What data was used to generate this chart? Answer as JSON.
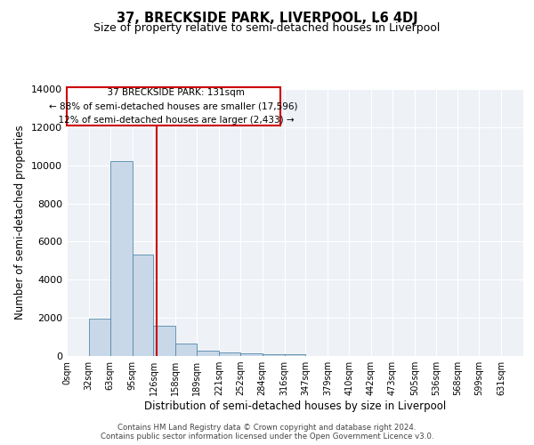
{
  "title": "37, BRECKSIDE PARK, LIVERPOOL, L6 4DJ",
  "subtitle": "Size of property relative to semi-detached houses in Liverpool",
  "xlabel": "Distribution of semi-detached houses by size in Liverpool",
  "ylabel": "Number of semi-detached properties",
  "bin_labels": [
    "0sqm",
    "32sqm",
    "63sqm",
    "95sqm",
    "126sqm",
    "158sqm",
    "189sqm",
    "221sqm",
    "252sqm",
    "284sqm",
    "316sqm",
    "347sqm",
    "379sqm",
    "410sqm",
    "442sqm",
    "473sqm",
    "505sqm",
    "536sqm",
    "568sqm",
    "599sqm",
    "631sqm"
  ],
  "bar_heights": [
    0,
    1950,
    10200,
    5300,
    1600,
    650,
    300,
    175,
    130,
    100,
    100,
    0,
    0,
    0,
    0,
    0,
    0,
    0,
    0,
    0,
    0
  ],
  "bar_color": "#c8d8e8",
  "bar_edge_color": "#5588aa",
  "property_value": 131,
  "property_label": "37 BRECKSIDE PARK: 131sqm",
  "pct_smaller": 88,
  "num_smaller": "17,596",
  "pct_larger": 12,
  "num_larger": "2,433",
  "vline_color": "#cc0000",
  "ylim": [
    0,
    14000
  ],
  "bin_edges": [
    0,
    32,
    63,
    95,
    126,
    158,
    189,
    221,
    252,
    284,
    316,
    347,
    379,
    410,
    442,
    473,
    505,
    536,
    568,
    599,
    631
  ],
  "footer_line1": "Contains HM Land Registry data © Crown copyright and database right 2024.",
  "footer_line2": "Contains public sector information licensed under the Open Government Licence v3.0.",
  "background_color": "#eef2f7",
  "grid_color": "#ffffff",
  "title_fontsize": 10.5,
  "subtitle_fontsize": 9,
  "annotation_fontsize": 7.5
}
